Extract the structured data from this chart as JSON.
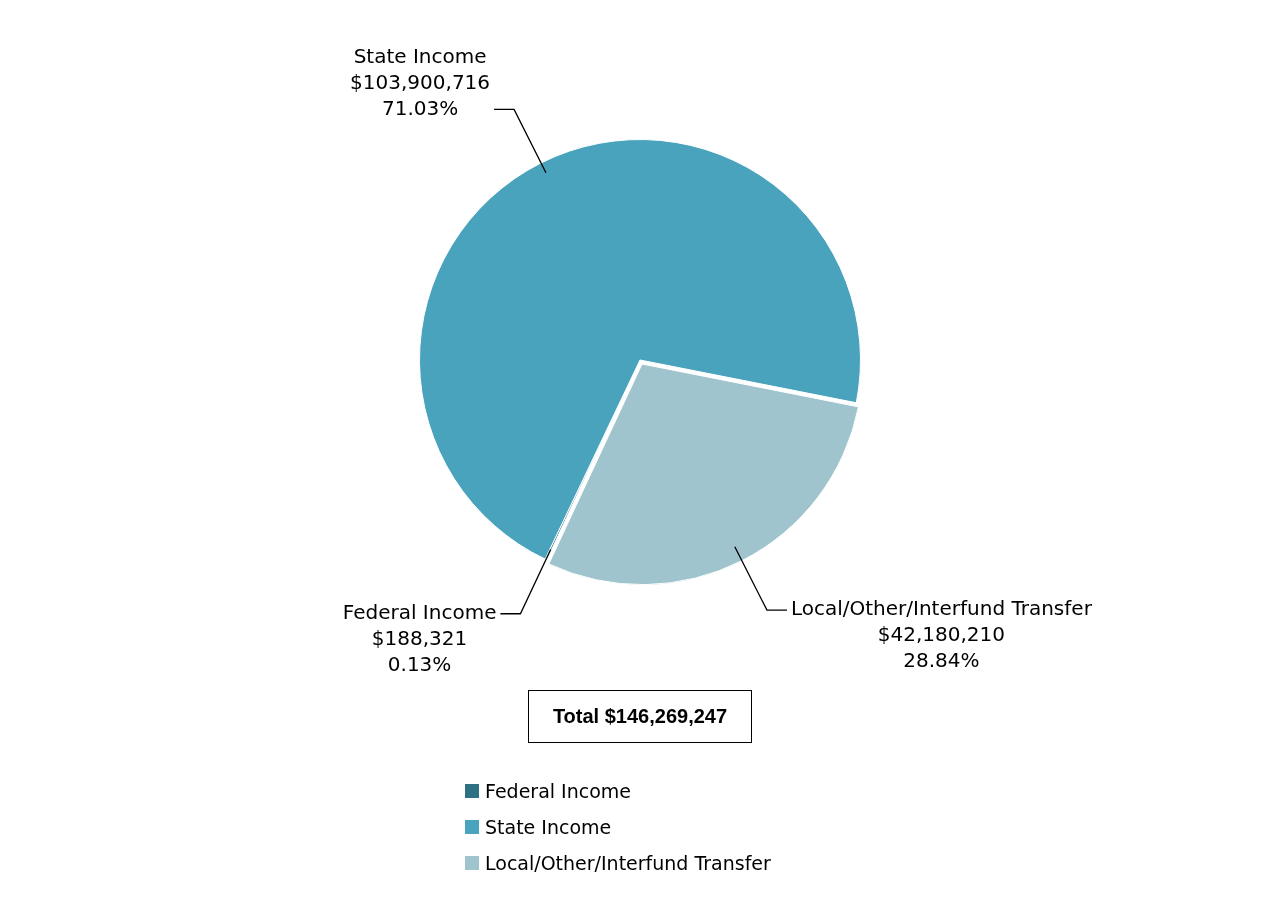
{
  "chart_data": {
    "type": "pie",
    "categories": [
      "Federal Income",
      "State Income",
      "Local/Other/Interfund Transfer"
    ],
    "values": [
      188321,
      103900716,
      42180210
    ],
    "colors": [
      "#2e7182",
      "#4aa3bd",
      "#9fc4cd"
    ],
    "value_labels": [
      "$188,321\n0.13%",
      "$103,900,716\n71.03%",
      "$42,180,210\n28.84%"
    ],
    "annotations": [
      "Total $146,269,247"
    ],
    "legend": "bottom"
  }
}
